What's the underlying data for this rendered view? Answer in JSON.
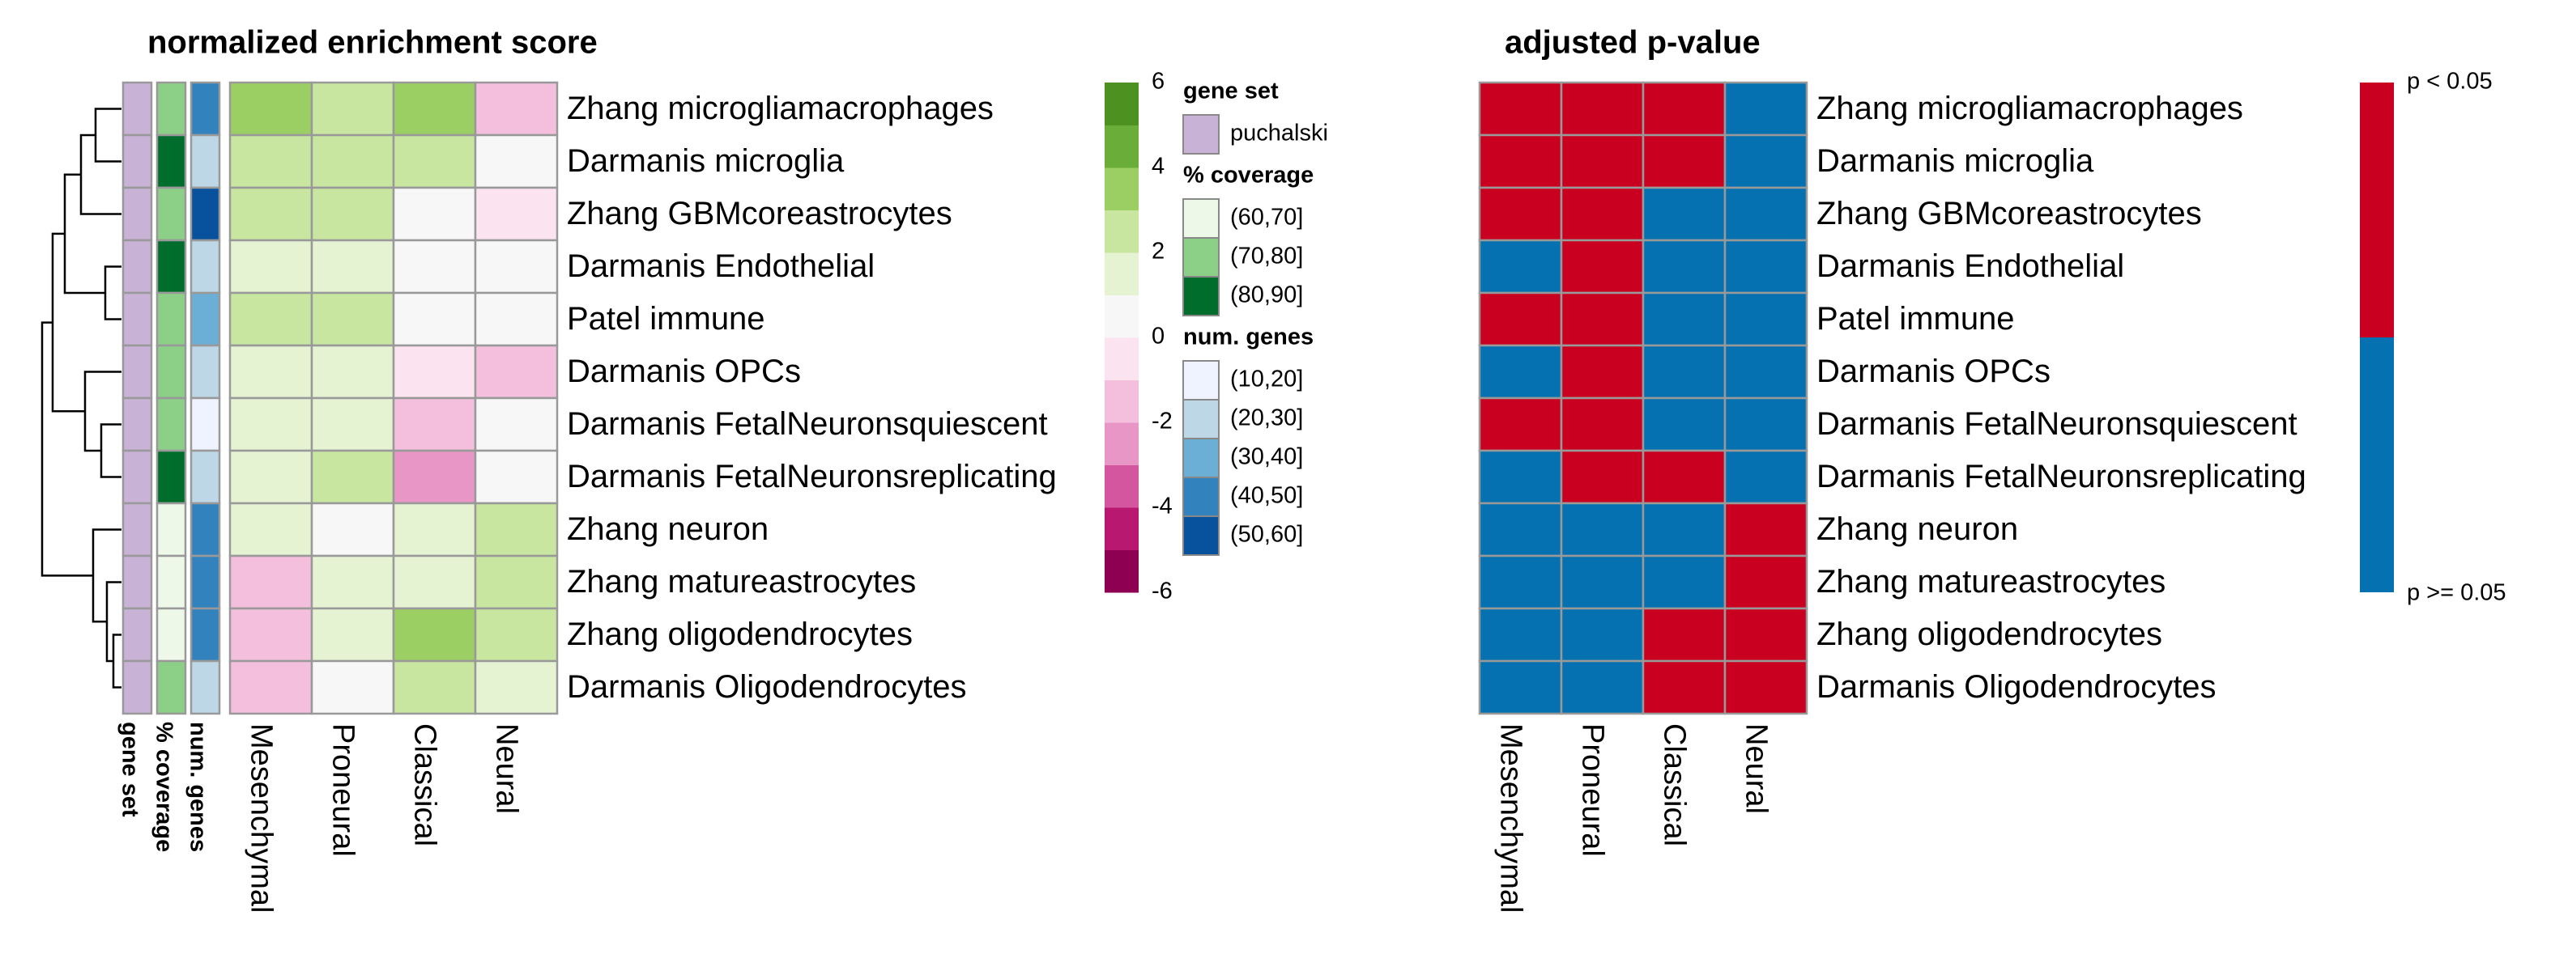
{
  "chart_data": [
    {
      "type": "heatmap",
      "title": "normalized enrichment score",
      "rows": [
        "Zhang microgliamacrophages",
        "Darmanis microglia",
        "Zhang GBMcoreastrocytes",
        "Darmanis Endothelial",
        "Patel immune",
        "Darmanis OPCs",
        "Darmanis FetalNeuronsquiescent",
        "Darmanis FetalNeuronsreplicating",
        "Zhang neuron",
        "Zhang matureastrocytes",
        "Zhang oligodendrocytes",
        "Darmanis Oligodendrocytes"
      ],
      "columns": [
        "Mesenchymal",
        "Proneural",
        "Classical",
        "Neural"
      ],
      "values": [
        [
          3.5,
          2.5,
          3.5,
          -1.5
        ],
        [
          2.5,
          2.5,
          2.5,
          0
        ],
        [
          2.5,
          2.5,
          0,
          -0.5
        ],
        [
          1.5,
          1.5,
          0,
          0
        ],
        [
          2.5,
          2.5,
          0,
          0
        ],
        [
          1.5,
          1.5,
          -0.5,
          -1.5
        ],
        [
          1.5,
          1.5,
          -1.5,
          0
        ],
        [
          1.5,
          2.5,
          -2.5,
          0
        ],
        [
          1.5,
          0,
          1.5,
          2.5
        ],
        [
          -1.5,
          1.5,
          1.5,
          2.5
        ],
        [
          -1.5,
          1.5,
          3.5,
          2.5
        ],
        [
          -1.5,
          0,
          2.5,
          1.5
        ]
      ],
      "zlim": [
        -6,
        6
      ],
      "zticks": [
        6,
        4,
        2,
        0,
        -2,
        -4,
        -6
      ],
      "colors": [
        "#8e0152",
        "#b8186f",
        "#d4569f",
        "#e796c5",
        "#f4bfdc",
        "#fbe3ef",
        "#f7f7f7",
        "#e6f3d2",
        "#c9e6a0",
        "#9ccf63",
        "#6aad39",
        "#4d9221"
      ],
      "annotations": [
        {
          "name": "gene set",
          "levels": [
            {
              "label": "puchalski",
              "color": "#c8b2d6"
            }
          ],
          "values": [
            "puchalski",
            "puchalski",
            "puchalski",
            "puchalski",
            "puchalski",
            "puchalski",
            "puchalski",
            "puchalski",
            "puchalski",
            "puchalski",
            "puchalski",
            "puchalski"
          ]
        },
        {
          "name": "% coverage",
          "levels": [
            {
              "label": "(60,70]",
              "color": "#edf8e9"
            },
            {
              "label": "(70,80]",
              "color": "#8ccf86"
            },
            {
              "label": "(80,90]",
              "color": "#006d2c"
            }
          ],
          "values": [
            "(70,80]",
            "(80,90]",
            "(70,80]",
            "(80,90]",
            "(70,80]",
            "(70,80]",
            "(70,80]",
            "(80,90]",
            "(60,70]",
            "(60,70]",
            "(60,70]",
            "(70,80]"
          ]
        },
        {
          "name": "num. genes",
          "levels": [
            {
              "label": "(10,20]",
              "color": "#eff3ff"
            },
            {
              "label": "(20,30]",
              "color": "#bdd7e7"
            },
            {
              "label": "(30,40]",
              "color": "#6baed6"
            },
            {
              "label": "(40,50]",
              "color": "#3182bd"
            },
            {
              "label": "(50,60]",
              "color": "#08519c"
            }
          ],
          "values": [
            "(40,50]",
            "(20,30]",
            "(50,60]",
            "(20,30]",
            "(30,40]",
            "(20,30]",
            "(10,20]",
            "(20,30]",
            "(40,50]",
            "(40,50]",
            "(40,50]",
            "(20,30]"
          ]
        }
      ]
    },
    {
      "type": "heatmap",
      "title": "adjusted p-value",
      "rows": [
        "Zhang microgliamacrophages",
        "Darmanis microglia",
        "Zhang GBMcoreastrocytes",
        "Darmanis Endothelial",
        "Patel immune",
        "Darmanis OPCs",
        "Darmanis FetalNeuronsquiescent",
        "Darmanis FetalNeuronsreplicating",
        "Zhang neuron",
        "Zhang matureastrocytes",
        "Zhang oligodendrocytes",
        "Darmanis Oligodendrocytes"
      ],
      "columns": [
        "Mesenchymal",
        "Proneural",
        "Classical",
        "Neural"
      ],
      "levels": [
        {
          "label": "p < 0.05",
          "color": "#ca0020"
        },
        {
          "label": "p >= 0.05",
          "color": "#0571b0"
        }
      ],
      "values": [
        [
          0,
          0,
          0,
          1
        ],
        [
          0,
          0,
          0,
          1
        ],
        [
          0,
          0,
          1,
          1
        ],
        [
          1,
          0,
          1,
          1
        ],
        [
          0,
          0,
          1,
          1
        ],
        [
          1,
          0,
          1,
          1
        ],
        [
          0,
          0,
          1,
          1
        ],
        [
          1,
          0,
          0,
          1
        ],
        [
          1,
          1,
          1,
          0
        ],
        [
          1,
          1,
          1,
          0
        ],
        [
          1,
          1,
          0,
          0
        ],
        [
          1,
          1,
          0,
          0
        ]
      ]
    }
  ]
}
